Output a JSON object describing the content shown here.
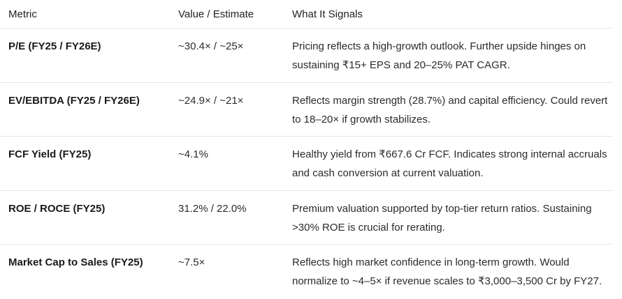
{
  "table": {
    "headers": {
      "metric": "Metric",
      "value": "Value / Estimate",
      "signal": "What It Signals"
    },
    "rows": [
      {
        "metric": "P/E (FY25 / FY26E)",
        "value": "~30.4× / ~25×",
        "signal": "Pricing reflects a high-growth outlook. Further upside hinges on sustaining ₹15+ EPS and 20–25% PAT CAGR."
      },
      {
        "metric": "EV/EBITDA (FY25 / FY26E)",
        "value": "~24.9× / ~21×",
        "signal": "Reflects margin strength (28.7%) and capital efficiency. Could revert to 18–20× if growth stabilizes."
      },
      {
        "metric": "FCF Yield (FY25)",
        "value": "~4.1%",
        "signal": "Healthy yield from ₹667.6 Cr FCF. Indicates strong internal accruals and cash conversion at current valuation."
      },
      {
        "metric": "ROE / ROCE (FY25)",
        "value": "31.2% / 22.0%",
        "signal": "Premium valuation supported by top-tier return ratios. Sustaining >30% ROE is crucial for rerating."
      },
      {
        "metric": "Market Cap to Sales (FY25)",
        "value": "~7.5×",
        "signal": "Reflects high market confidence in long-term growth. Would normalize to ~4–5× if revenue scales to ₹3,000–3,500 Cr by FY27."
      }
    ]
  }
}
